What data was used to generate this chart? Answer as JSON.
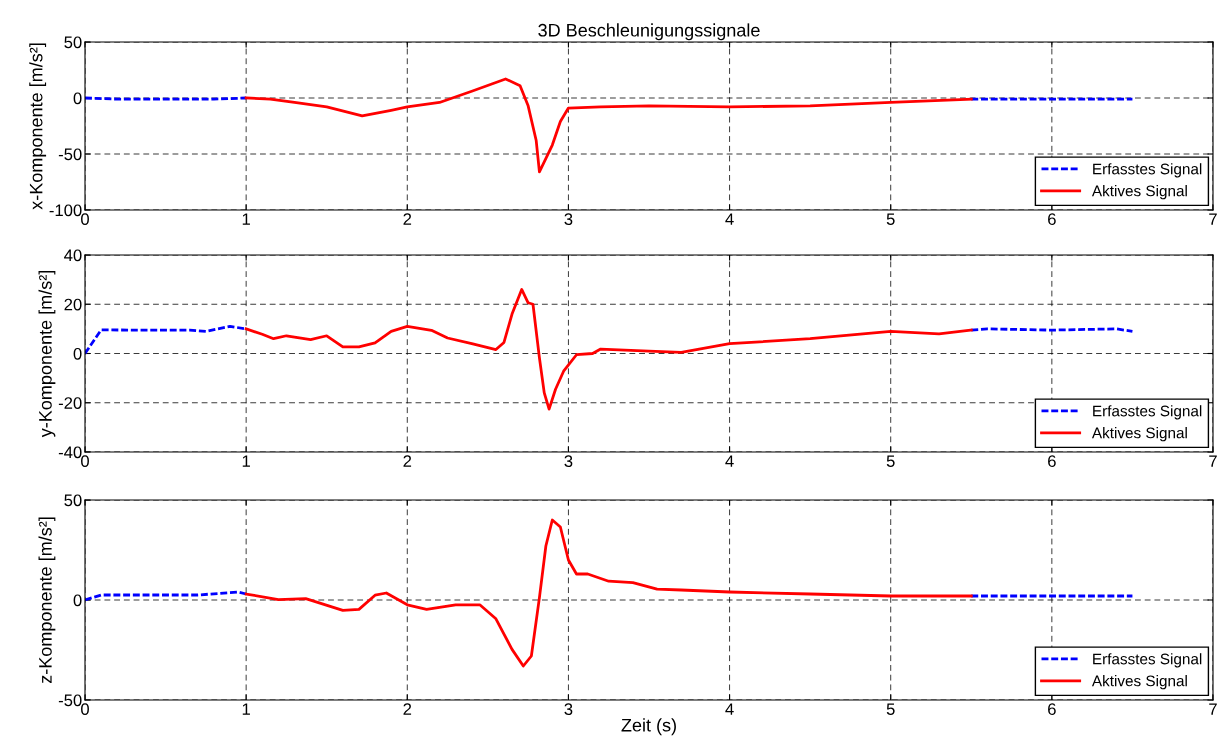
{
  "chart_data": [
    {
      "type": "line",
      "title": "3D Beschleunigungssignale",
      "ylabel": "x-Komponente [m/s²]",
      "xlim": [
        0,
        7
      ],
      "xticks": [
        0,
        1,
        2,
        3,
        4,
        5,
        6,
        7
      ],
      "ylim": [
        -100,
        50
      ],
      "yticks": [
        -100,
        -50,
        0,
        50
      ],
      "grid": true,
      "legend": "bottom right",
      "series": [
        {
          "name": "Erfasstes Signal",
          "color": "#0000ff",
          "line_style": "dashed",
          "x": [
            0,
            0.2,
            0.4,
            0.6,
            0.8,
            1.0,
            3.0,
            5.5,
            5.8,
            6.1,
            6.5
          ],
          "values": [
            0,
            -1,
            -1,
            -1,
            -1,
            0,
            null,
            -1,
            -1,
            -1,
            -1
          ]
        },
        {
          "name": "Aktives Signal",
          "color": "#ff0000",
          "line_style": "solid",
          "x": [
            1.0,
            1.15,
            1.3,
            1.5,
            1.72,
            1.9,
            2.0,
            2.2,
            2.4,
            2.61,
            2.7,
            2.75,
            2.8,
            2.82,
            2.9,
            2.95,
            3.0,
            3.2,
            3.5,
            4.0,
            4.5,
            5.0,
            5.5
          ],
          "values": [
            0,
            -1,
            -4,
            -8,
            -16,
            -11,
            -8,
            -4,
            6,
            17,
            11,
            -7,
            -38,
            -66,
            -42,
            -21,
            -9,
            -8,
            -7,
            -8,
            -7,
            -4,
            -1
          ]
        }
      ]
    },
    {
      "type": "line",
      "ylabel": "y-Komponente [m/s²]",
      "xlim": [
        0,
        7
      ],
      "xticks": [
        0,
        1,
        2,
        3,
        4,
        5,
        6,
        7
      ],
      "ylim": [
        -40,
        40
      ],
      "yticks": [
        -40,
        -20,
        0,
        20,
        40
      ],
      "grid": true,
      "legend": "bottom right",
      "series": [
        {
          "name": "Erfasstes Signal",
          "color": "#0000ff",
          "line_style": "dashed",
          "x": [
            0,
            0.1,
            0.3,
            0.5,
            0.65,
            0.75,
            0.9,
            1.0,
            3.0,
            5.5,
            5.6,
            6.0,
            6.4,
            6.5
          ],
          "values": [
            0,
            9.6,
            9.5,
            9.5,
            9.5,
            9,
            11,
            10,
            null,
            9.5,
            10,
            9.5,
            10,
            9
          ]
        },
        {
          "name": "Aktives Signal",
          "color": "#ff0000",
          "line_style": "solid",
          "x": [
            1.0,
            1.1,
            1.17,
            1.25,
            1.4,
            1.5,
            1.6,
            1.7,
            1.8,
            1.9,
            2.0,
            2.15,
            2.25,
            2.4,
            2.55,
            2.6,
            2.65,
            2.71,
            2.75,
            2.78,
            2.82,
            2.85,
            2.88,
            2.92,
            2.97,
            3.05,
            3.15,
            3.2,
            3.5,
            3.7,
            4.0,
            4.5,
            5.0,
            5.3,
            5.5
          ],
          "values": [
            10,
            7.8,
            6,
            7.2,
            5.6,
            7.2,
            2.7,
            2.7,
            4.3,
            9,
            11,
            9.4,
            6.3,
            4,
            1.6,
            4.5,
            16,
            26,
            20.6,
            20,
            -1.8,
            -16,
            -22.6,
            -14.5,
            -7.2,
            -0.5,
            0,
            1.8,
            1,
            0.5,
            4,
            6,
            9,
            8,
            9.5
          ]
        }
      ]
    },
    {
      "type": "line",
      "ylabel": "z-Komponente [m/s²]",
      "xlabel": "Zeit (s)",
      "xlim": [
        0,
        7
      ],
      "xticks": [
        0,
        1,
        2,
        3,
        4,
        5,
        6,
        7
      ],
      "ylim": [
        -50,
        50
      ],
      "yticks": [
        -50,
        0,
        50
      ],
      "grid": true,
      "legend": "bottom right",
      "series": [
        {
          "name": "Erfasstes Signal",
          "color": "#0000ff",
          "line_style": "dashed",
          "x": [
            0,
            0.1,
            0.3,
            0.5,
            0.7,
            0.95,
            1.0,
            3.0,
            5.5,
            5.8,
            6.1,
            6.5
          ],
          "values": [
            0,
            2.5,
            2.5,
            2.5,
            2.5,
            4,
            3,
            null,
            2,
            2,
            2,
            2
          ]
        },
        {
          "name": "Aktives Signal",
          "color": "#ff0000",
          "line_style": "solid",
          "x": [
            1.0,
            1.2,
            1.37,
            1.6,
            1.7,
            1.8,
            1.87,
            2.0,
            2.12,
            2.3,
            2.45,
            2.55,
            2.65,
            2.72,
            2.77,
            2.82,
            2.86,
            2.9,
            2.95,
            3.0,
            3.05,
            3.12,
            3.25,
            3.4,
            3.55,
            3.7,
            4.0,
            4.5,
            5.0,
            5.5
          ],
          "values": [
            3,
            0.2,
            0.7,
            -5.2,
            -4.7,
            2.4,
            3.5,
            -2.4,
            -4.7,
            -2.4,
            -2.4,
            -9.4,
            -24.7,
            -33,
            -28,
            1.2,
            27,
            40,
            36.5,
            20,
            13,
            13,
            9.4,
            8.7,
            5.4,
            5,
            4,
            3,
            2,
            2
          ]
        }
      ]
    }
  ]
}
